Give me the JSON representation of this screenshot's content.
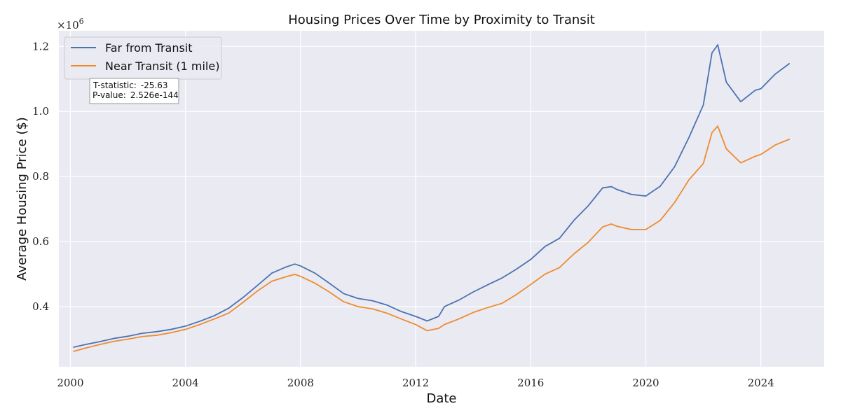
{
  "chart_data": {
    "type": "line",
    "title": "Housing Prices Over Time by Proximity to Transit",
    "xlabel": "Date",
    "ylabel": "Average Housing Price ($)",
    "y_offset_label": "×10",
    "y_offset_exponent": "6",
    "xlim": [
      1999.6,
      2026.2
    ],
    "ylim": [
      0.215,
      1.248
    ],
    "y_scale_note": "values in millions (×10^6)",
    "x_ticks": [
      2000,
      2004,
      2008,
      2012,
      2016,
      2020,
      2024
    ],
    "x_tick_labels": [
      "2000",
      "2004",
      "2008",
      "2012",
      "2016",
      "2020",
      "2024"
    ],
    "y_ticks": [
      0.4,
      0.6,
      0.8,
      1.0,
      1.2
    ],
    "y_tick_labels": [
      "0.4",
      "0.6",
      "0.8",
      "1.0",
      "1.2"
    ],
    "grid": true,
    "legend_position": "top-left",
    "series": [
      {
        "name": "Far from Transit",
        "color": "#4c72b0",
        "points": [
          [
            2000.1,
            0.275
          ],
          [
            2000.5,
            0.283
          ],
          [
            2001.0,
            0.292
          ],
          [
            2001.5,
            0.302
          ],
          [
            2002.0,
            0.309
          ],
          [
            2002.5,
            0.318
          ],
          [
            2003.0,
            0.323
          ],
          [
            2003.5,
            0.33
          ],
          [
            2004.0,
            0.34
          ],
          [
            2004.5,
            0.355
          ],
          [
            2005.0,
            0.372
          ],
          [
            2005.5,
            0.395
          ],
          [
            2006.0,
            0.428
          ],
          [
            2006.5,
            0.465
          ],
          [
            2007.0,
            0.503
          ],
          [
            2007.5,
            0.522
          ],
          [
            2007.8,
            0.531
          ],
          [
            2008.0,
            0.525
          ],
          [
            2008.5,
            0.503
          ],
          [
            2009.0,
            0.472
          ],
          [
            2009.5,
            0.44
          ],
          [
            2010.0,
            0.425
          ],
          [
            2010.5,
            0.418
          ],
          [
            2011.0,
            0.405
          ],
          [
            2011.5,
            0.385
          ],
          [
            2012.0,
            0.37
          ],
          [
            2012.4,
            0.356
          ],
          [
            2012.8,
            0.37
          ],
          [
            2013.0,
            0.4
          ],
          [
            2013.5,
            0.42
          ],
          [
            2014.0,
            0.445
          ],
          [
            2014.5,
            0.467
          ],
          [
            2015.0,
            0.488
          ],
          [
            2015.5,
            0.515
          ],
          [
            2016.0,
            0.545
          ],
          [
            2016.5,
            0.585
          ],
          [
            2017.0,
            0.61
          ],
          [
            2017.5,
            0.665
          ],
          [
            2018.0,
            0.71
          ],
          [
            2018.5,
            0.765
          ],
          [
            2018.8,
            0.769
          ],
          [
            2019.0,
            0.76
          ],
          [
            2019.5,
            0.745
          ],
          [
            2020.0,
            0.74
          ],
          [
            2020.5,
            0.77
          ],
          [
            2021.0,
            0.83
          ],
          [
            2021.5,
            0.92
          ],
          [
            2022.0,
            1.02
          ],
          [
            2022.3,
            1.18
          ],
          [
            2022.5,
            1.205
          ],
          [
            2022.8,
            1.09
          ],
          [
            2023.3,
            1.03
          ],
          [
            2023.8,
            1.065
          ],
          [
            2024.0,
            1.07
          ],
          [
            2024.5,
            1.115
          ],
          [
            2025.0,
            1.148
          ]
        ]
      },
      {
        "name": "Near Transit (1 mile)",
        "color": "#ee8b2f",
        "points": [
          [
            2000.1,
            0.262
          ],
          [
            2000.5,
            0.272
          ],
          [
            2001.0,
            0.283
          ],
          [
            2001.5,
            0.293
          ],
          [
            2002.0,
            0.3
          ],
          [
            2002.5,
            0.308
          ],
          [
            2003.0,
            0.312
          ],
          [
            2003.5,
            0.32
          ],
          [
            2004.0,
            0.33
          ],
          [
            2004.5,
            0.345
          ],
          [
            2005.0,
            0.362
          ],
          [
            2005.5,
            0.38
          ],
          [
            2006.0,
            0.413
          ],
          [
            2006.5,
            0.448
          ],
          [
            2007.0,
            0.478
          ],
          [
            2007.5,
            0.492
          ],
          [
            2007.8,
            0.499
          ],
          [
            2008.0,
            0.493
          ],
          [
            2008.5,
            0.472
          ],
          [
            2009.0,
            0.445
          ],
          [
            2009.5,
            0.415
          ],
          [
            2010.0,
            0.4
          ],
          [
            2010.5,
            0.393
          ],
          [
            2011.0,
            0.38
          ],
          [
            2011.5,
            0.362
          ],
          [
            2012.0,
            0.345
          ],
          [
            2012.4,
            0.326
          ],
          [
            2012.8,
            0.333
          ],
          [
            2013.0,
            0.345
          ],
          [
            2013.5,
            0.362
          ],
          [
            2014.0,
            0.382
          ],
          [
            2014.5,
            0.397
          ],
          [
            2015.0,
            0.41
          ],
          [
            2015.5,
            0.437
          ],
          [
            2016.0,
            0.468
          ],
          [
            2016.5,
            0.5
          ],
          [
            2017.0,
            0.52
          ],
          [
            2017.5,
            0.562
          ],
          [
            2018.0,
            0.598
          ],
          [
            2018.5,
            0.645
          ],
          [
            2018.8,
            0.654
          ],
          [
            2019.0,
            0.647
          ],
          [
            2019.5,
            0.637
          ],
          [
            2020.0,
            0.637
          ],
          [
            2020.5,
            0.665
          ],
          [
            2021.0,
            0.72
          ],
          [
            2021.5,
            0.79
          ],
          [
            2022.0,
            0.84
          ],
          [
            2022.3,
            0.935
          ],
          [
            2022.5,
            0.955
          ],
          [
            2022.8,
            0.885
          ],
          [
            2023.3,
            0.842
          ],
          [
            2023.8,
            0.862
          ],
          [
            2024.0,
            0.868
          ],
          [
            2024.5,
            0.897
          ],
          [
            2025.0,
            0.915
          ]
        ]
      }
    ],
    "annotation": {
      "t_label": "T-statistic:",
      "t_value": "-25.63",
      "p_label": "P-value:",
      "p_value": "2.526e-144"
    }
  }
}
